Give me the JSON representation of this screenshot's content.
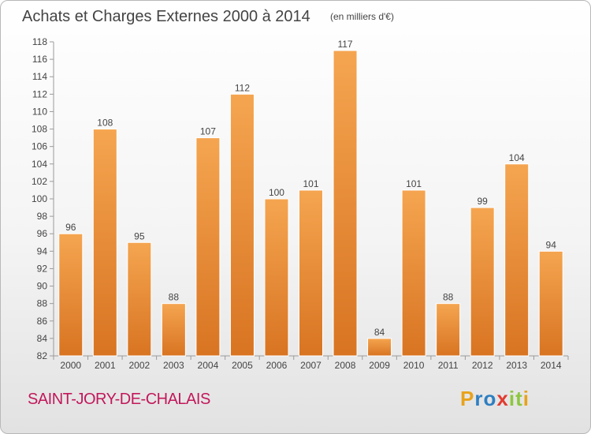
{
  "chart_data": {
    "type": "bar",
    "title": "Achats et Charges Externes 2000 à 2014",
    "subtitle": "(en milliers d'€)",
    "categories": [
      "2000",
      "2001",
      "2002",
      "2003",
      "2004",
      "2005",
      "2006",
      "2007",
      "2008",
      "2009",
      "2010",
      "2011",
      "2012",
      "2013",
      "2014"
    ],
    "values": [
      96,
      108,
      95,
      88,
      107,
      112,
      100,
      101,
      117,
      84,
      101,
      88,
      99,
      104,
      94
    ],
    "ylim": [
      82,
      118
    ],
    "yticks": [
      82,
      84,
      86,
      88,
      90,
      92,
      94,
      96,
      98,
      100,
      102,
      104,
      106,
      108,
      110,
      112,
      114,
      116,
      118
    ],
    "xlabel": "",
    "ylabel": "",
    "grid": false,
    "bar_color_top": "#f5a550",
    "bar_color_bottom": "#d87422"
  },
  "footer": {
    "place": "SAINT-JORY-DE-CHALAIS",
    "logo_letters": [
      "P",
      "r",
      "o",
      "x",
      "i",
      "t",
      "i"
    ],
    "logo_colors": [
      "#e8a21b",
      "#2e7fc1",
      "#2e7fc1",
      "#e23b2e",
      "#8dc63f",
      "#8dc63f",
      "#e8a21b"
    ]
  }
}
